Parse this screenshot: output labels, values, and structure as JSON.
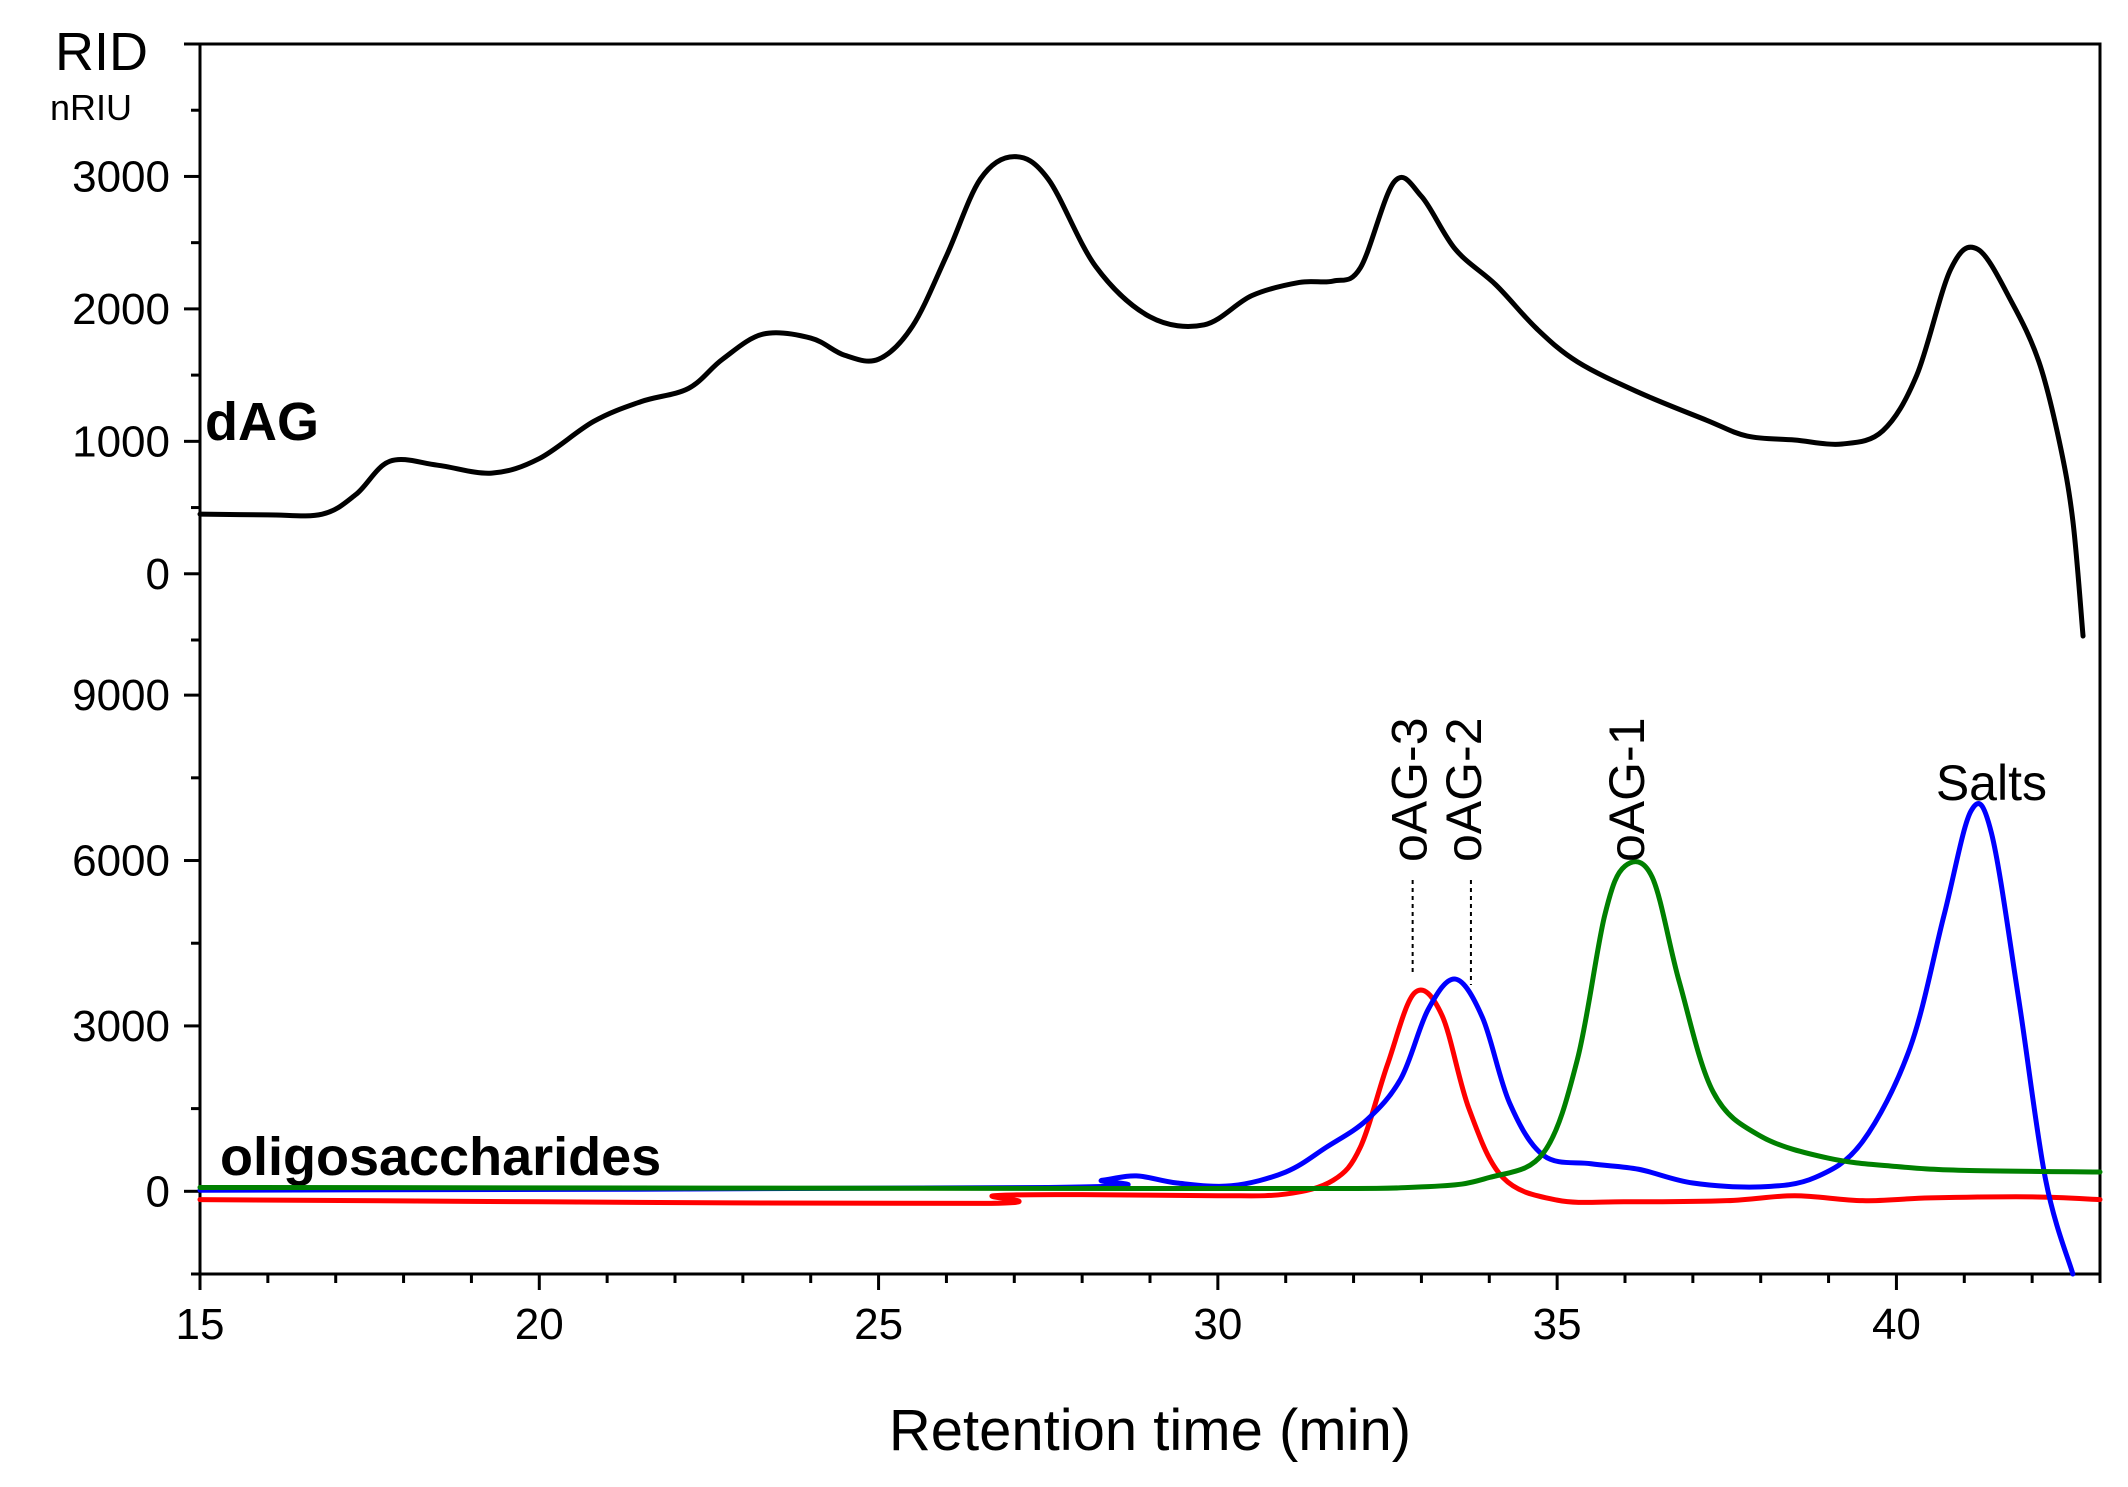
{
  "chart_data": {
    "type": "line",
    "xlabel": "Retention time (min)",
    "xlim": [
      15,
      43
    ],
    "x_ticks": [
      "15",
      "20",
      "25",
      "30",
      "35",
      "40"
    ],
    "detector": "RID",
    "unit": "nRIU",
    "panels": [
      {
        "name": "dAG",
        "ylim": [
          -500,
          4000
        ],
        "y_ticks": [
          "0",
          "1000",
          "2000",
          "3000"
        ],
        "series": [
          {
            "name": "dAG",
            "color": "#000000",
            "points": [
              [
                15,
                450
              ],
              [
                16,
                445
              ],
              [
                16.8,
                450
              ],
              [
                17.3,
                600
              ],
              [
                17.8,
                850
              ],
              [
                18.5,
                820
              ],
              [
                19.3,
                760
              ],
              [
                20,
                870
              ],
              [
                20.8,
                1150
              ],
              [
                21.5,
                1300
              ],
              [
                22.2,
                1400
              ],
              [
                22.7,
                1620
              ],
              [
                23.3,
                1810
              ],
              [
                24,
                1780
              ],
              [
                24.5,
                1650
              ],
              [
                25,
                1620
              ],
              [
                25.5,
                1870
              ],
              [
                26,
                2400
              ],
              [
                26.5,
                2980
              ],
              [
                27,
                3150
              ],
              [
                27.5,
                2980
              ],
              [
                28.2,
                2320
              ],
              [
                29,
                1940
              ],
              [
                29.8,
                1880
              ],
              [
                30.5,
                2100
              ],
              [
                31.2,
                2200
              ],
              [
                31.7,
                2210
              ],
              [
                32.1,
                2310
              ],
              [
                32.6,
                2960
              ],
              [
                33,
                2850
              ],
              [
                33.5,
                2450
              ],
              [
                34.1,
                2180
              ],
              [
                34.7,
                1850
              ],
              [
                35.3,
                1600
              ],
              [
                36.2,
                1370
              ],
              [
                37.2,
                1160
              ],
              [
                37.8,
                1040
              ],
              [
                38.5,
                1010
              ],
              [
                39.2,
                980
              ],
              [
                39.8,
                1080
              ],
              [
                40.3,
                1500
              ],
              [
                40.8,
                2300
              ],
              [
                41.2,
                2450
              ],
              [
                41.7,
                2050
              ],
              [
                42.1,
                1600
              ],
              [
                42.4,
                1000
              ],
              [
                42.6,
                400
              ],
              [
                42.75,
                -470
              ]
            ]
          }
        ]
      },
      {
        "name": "oligosaccharides",
        "ylim": [
          -1500,
          10000
        ],
        "y_ticks": [
          "0",
          "3000",
          "6000",
          "9000"
        ],
        "series": [
          {
            "name": "oAG-3",
            "color": "#ff0000",
            "points": [
              [
                15,
                -150
              ],
              [
                20,
                -190
              ],
              [
                26.6,
                -220
              ],
              [
                26.7,
                -80
              ],
              [
                28,
                -60
              ],
              [
                30,
                -80
              ],
              [
                31,
                -50
              ],
              [
                31.7,
                200
              ],
              [
                32.1,
                800
              ],
              [
                32.5,
                2300
              ],
              [
                32.9,
                3600
              ],
              [
                33.3,
                3200
              ],
              [
                33.7,
                1500
              ],
              [
                34.2,
                250
              ],
              [
                35,
                -160
              ],
              [
                36,
                -190
              ],
              [
                37.5,
                -170
              ],
              [
                38.5,
                -80
              ],
              [
                39.5,
                -170
              ],
              [
                40.5,
                -120
              ],
              [
                42,
                -100
              ],
              [
                43,
                -150
              ]
            ]
          },
          {
            "name": "oAG-2",
            "color": "#0000ff",
            "points": [
              [
                15,
                20
              ],
              [
                27.5,
                70
              ],
              [
                28.3,
                200
              ],
              [
                28.8,
                280
              ],
              [
                29.4,
                150
              ],
              [
                30.2,
                100
              ],
              [
                31,
                350
              ],
              [
                31.6,
                800
              ],
              [
                32.2,
                1300
              ],
              [
                32.7,
                2050
              ],
              [
                33.1,
                3300
              ],
              [
                33.5,
                3850
              ],
              [
                33.9,
                3150
              ],
              [
                34.3,
                1600
              ],
              [
                34.8,
                650
              ],
              [
                35.5,
                500
              ],
              [
                36.2,
                400
              ],
              [
                37,
                150
              ],
              [
                38,
                80
              ],
              [
                38.8,
                250
              ],
              [
                39.5,
                900
              ],
              [
                40.2,
                2600
              ],
              [
                40.7,
                5000
              ],
              [
                41.1,
                6900
              ],
              [
                41.4,
                6500
              ],
              [
                41.8,
                3500
              ],
              [
                42.2,
                200
              ],
              [
                42.6,
                -1500
              ]
            ]
          },
          {
            "name": "oAG-1",
            "color": "#008000",
            "points": [
              [
                15,
                70
              ],
              [
                30,
                50
              ],
              [
                33,
                80
              ],
              [
                34,
                250
              ],
              [
                34.8,
                700
              ],
              [
                35.3,
                2400
              ],
              [
                35.7,
                5000
              ],
              [
                36,
                5900
              ],
              [
                36.4,
                5700
              ],
              [
                36.8,
                3800
              ],
              [
                37.3,
                1800
              ],
              [
                38,
                1000
              ],
              [
                39,
                600
              ],
              [
                40,
                450
              ],
              [
                41,
                380
              ],
              [
                43,
                350
              ]
            ]
          }
        ]
      }
    ],
    "annotations": [
      {
        "text": "oAG-3",
        "x": 32.9
      },
      {
        "text": "oAG-2",
        "x": 33.7
      },
      {
        "text": "oAG-1",
        "x": 36.1
      },
      {
        "text": "Salts",
        "x": 41.4
      }
    ]
  }
}
